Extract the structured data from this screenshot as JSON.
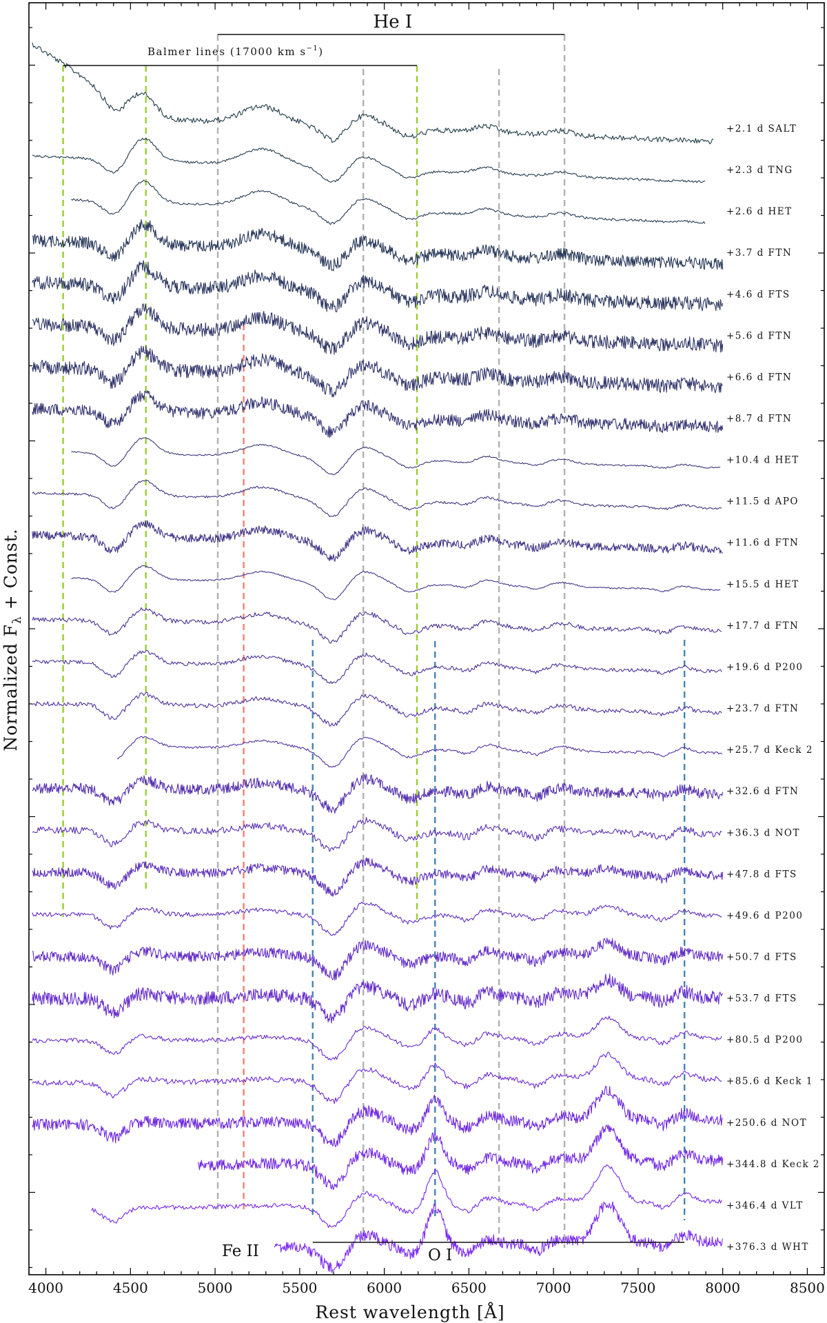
{
  "chart_data": {
    "type": "line",
    "title": "",
    "xlabel": "Rest wavelength [Å]",
    "ylabel": "Normalized F",
    "ylabel_sub": "λ",
    "ylabel_tail": " + Const.",
    "xlim": [
      3900,
      8600
    ],
    "xticks": [
      4000,
      4500,
      5000,
      5500,
      6000,
      6500,
      7000,
      7500,
      8000,
      8500
    ],
    "grid": false,
    "legend": "none",
    "line_groups": [
      {
        "name": "He I",
        "color": "#b0b0b0",
        "wavelengths": [
          5016,
          5876,
          6678,
          7065
        ],
        "bar_range": [
          5016,
          7065
        ]
      },
      {
        "name": "Balmer lines (17000 km s",
        "name_sup": "−1",
        "name_tail": ")",
        "color": "#9acd32",
        "wavelengths": [
          4102,
          4591,
          6193
        ],
        "bar_range": [
          4102,
          6193
        ]
      },
      {
        "name": "Fe II",
        "color": "#f08070",
        "wavelengths": [
          5169
        ]
      },
      {
        "name": "O I",
        "color": "#4682b4",
        "wavelengths": [
          5577,
          6300,
          7774
        ],
        "bar_range": [
          5577,
          7774
        ]
      }
    ],
    "series": [
      {
        "label": "+2.1 d SALT",
        "range": [
          3920,
          7950
        ],
        "noise": 0.35
      },
      {
        "label": "+2.3 d TNG",
        "range": [
          3920,
          7900
        ],
        "noise": 0.15
      },
      {
        "label": "+2.6 d HET",
        "range": [
          4150,
          7900
        ],
        "noise": 0.15
      },
      {
        "label": "+3.7 d FTN",
        "range": [
          3920,
          8000
        ],
        "noise": 0.8
      },
      {
        "label": "+4.6 d FTS",
        "range": [
          3920,
          8000
        ],
        "noise": 0.9
      },
      {
        "label": "+5.6 d FTN",
        "range": [
          3920,
          8000
        ],
        "noise": 0.9
      },
      {
        "label": "+6.6 d FTN",
        "range": [
          3920,
          8000
        ],
        "noise": 0.9
      },
      {
        "label": "+8.7 d FTN",
        "range": [
          3920,
          8000
        ],
        "noise": 0.8
      },
      {
        "label": "+10.4 d HET",
        "range": [
          4150,
          7990
        ],
        "noise": 0.1
      },
      {
        "label": "+11.5 d APO",
        "range": [
          3920,
          8000
        ],
        "noise": 0.15
      },
      {
        "label": "+11.6 d FTN",
        "range": [
          3920,
          8000
        ],
        "noise": 0.55
      },
      {
        "label": "+15.5 d HET",
        "range": [
          4150,
          7990
        ],
        "noise": 0.1
      },
      {
        "label": "+17.7 d FTN",
        "range": [
          3920,
          8000
        ],
        "noise": 0.3
      },
      {
        "label": "+19.6 d P200",
        "range": [
          3920,
          8000
        ],
        "noise": 0.25
      },
      {
        "label": "+23.7 d FTN",
        "range": [
          3920,
          8000
        ],
        "noise": 0.3
      },
      {
        "label": "+25.7 d Keck 2",
        "range": [
          4420,
          8000
        ],
        "noise": 0.15
      },
      {
        "label": "+32.6 d FTN",
        "range": [
          3920,
          8000
        ],
        "noise": 0.7
      },
      {
        "label": "+36.3 d NOT",
        "range": [
          3920,
          8000
        ],
        "noise": 0.45
      },
      {
        "label": "+47.8 d FTS",
        "range": [
          3920,
          8000
        ],
        "noise": 0.6
      },
      {
        "label": "+49.6 d P200",
        "range": [
          3920,
          8000
        ],
        "noise": 0.3
      },
      {
        "label": "+50.7 d FTS",
        "range": [
          3920,
          8000
        ],
        "noise": 0.7
      },
      {
        "label": "+53.7 d FTS",
        "range": [
          3920,
          8000
        ],
        "noise": 0.9
      },
      {
        "label": "+80.5 d P200",
        "range": [
          3920,
          8000
        ],
        "noise": 0.3
      },
      {
        "label": "+85.6 d Keck 1",
        "range": [
          3920,
          8000
        ],
        "noise": 0.35
      },
      {
        "label": "+250.6 d NOT",
        "range": [
          3920,
          8000
        ],
        "noise": 0.75
      },
      {
        "label": "+344.8 d Keck 2",
        "range": [
          4900,
          8000
        ],
        "noise": 0.75
      },
      {
        "label": "+346.4 d VLT",
        "range": [
          4270,
          8000
        ],
        "noise": 0.3
      },
      {
        "label": "+376.3 d WHT",
        "range": [
          5350,
          8000
        ],
        "noise": 0.75
      }
    ]
  }
}
